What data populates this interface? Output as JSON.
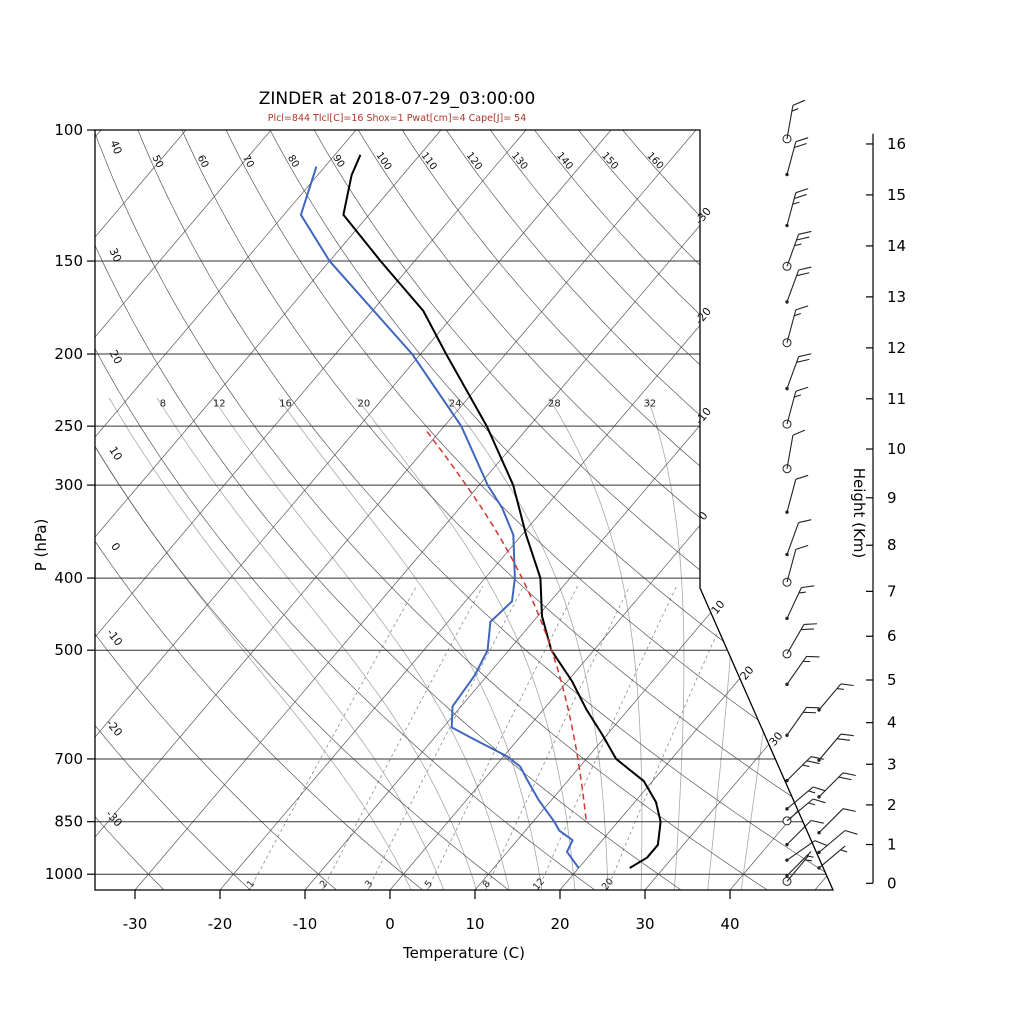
{
  "title": "ZINDER at 2018-07-29_03:00:00",
  "subtitle": "Plcl=844 Tlcl[C]=16 Shox=1 Pwat[cm]=4 Cape[J]= 54",
  "axes": {
    "pressure": {
      "label": "P (hPa)",
      "ticks": [
        100,
        150,
        200,
        250,
        300,
        400,
        500,
        700,
        850,
        1000
      ],
      "range": [
        100,
        1050
      ]
    },
    "temperature": {
      "label": "Temperature (C)",
      "ticks": [
        -30,
        -20,
        -10,
        0,
        10,
        20,
        30,
        40
      ]
    },
    "height": {
      "label": "Height (Km)",
      "ticks": [
        0,
        1,
        2,
        3,
        4,
        5,
        6,
        7,
        8,
        9,
        10,
        11,
        12,
        13,
        14,
        15,
        16
      ]
    }
  },
  "grid": {
    "isotherms": {
      "min": -120,
      "max": 50,
      "step": 10,
      "edge_labels": [
        -30,
        -20,
        -10,
        0,
        10,
        20,
        30
      ]
    },
    "dry_adiabats": {
      "min": -30,
      "max": 160,
      "step": 10,
      "left_labels": [
        40,
        30,
        20,
        10,
        0,
        -10,
        -20,
        -30
      ],
      "top_labels": [
        50,
        60,
        70,
        80,
        90,
        100,
        110,
        120,
        130,
        140,
        150,
        160
      ]
    },
    "moist_adiabats": {
      "values": [
        0,
        4,
        8,
        12,
        16,
        20,
        24,
        28,
        32,
        36,
        40
      ],
      "labels": [
        8,
        12,
        16,
        20,
        24,
        28,
        32
      ],
      "label_pressure": 238,
      "top_pressure": 230
    },
    "mixing_ratio": {
      "values": [
        1,
        2,
        3,
        5,
        8,
        12,
        20
      ],
      "labels": [
        1,
        2,
        3,
        5,
        8,
        12,
        20
      ],
      "top_pressure": 400,
      "label_pressure": 1028
    }
  },
  "chart_data": {
    "type": "line",
    "chart": "skew_t_log_p_sounding",
    "station": "ZINDER",
    "datetime": "2018-07-29_03:00:00",
    "indices": {
      "Plcl_hPa": 844,
      "Tlcl_C": 16,
      "Shox": 1,
      "Pwat_cm": 4,
      "Cape_J": 54
    },
    "series": [
      {
        "name": "temperature",
        "style": "solid",
        "points_p_T": [
          [
            981,
            26
          ],
          [
            950,
            27
          ],
          [
            913,
            27
          ],
          [
            850,
            25
          ],
          [
            800,
            22.5
          ],
          [
            750,
            19
          ],
          [
            700,
            13.5
          ],
          [
            650,
            9.5
          ],
          [
            600,
            5
          ],
          [
            550,
            0.5
          ],
          [
            500,
            -5
          ],
          [
            450,
            -9.5
          ],
          [
            400,
            -13.5
          ],
          [
            350,
            -19.5
          ],
          [
            300,
            -26
          ],
          [
            250,
            -35
          ],
          [
            200,
            -47
          ],
          [
            175,
            -54
          ],
          [
            150,
            -64
          ],
          [
            130,
            -73
          ],
          [
            115,
            -76
          ],
          [
            108,
            -77
          ]
        ]
      },
      {
        "name": "dewpoint",
        "style": "solid",
        "points_p_T": [
          [
            981,
            20
          ],
          [
            933,
            17
          ],
          [
            900,
            16.5
          ],
          [
            874,
            14
          ],
          [
            850,
            12.5
          ],
          [
            795,
            8.5
          ],
          [
            745,
            5
          ],
          [
            717,
            3
          ],
          [
            695,
            0.5
          ],
          [
            660,
            -5
          ],
          [
            635,
            -9
          ],
          [
            595,
            -11
          ],
          [
            540,
            -11.5
          ],
          [
            500,
            -12.5
          ],
          [
            458,
            -15
          ],
          [
            430,
            -14.5
          ],
          [
            400,
            -16.5
          ],
          [
            350,
            -21
          ],
          [
            322,
            -25
          ],
          [
            300,
            -29
          ],
          [
            250,
            -38
          ],
          [
            200,
            -51
          ],
          [
            150,
            -70
          ],
          [
            130,
            -78
          ],
          [
            112,
            -81
          ]
        ]
      },
      {
        "name": "parcel",
        "style": "dashed",
        "start_p": 844,
        "start_T": 16,
        "end_p": 255
      }
    ],
    "winds": [
      {
        "km": 16.1,
        "kt": 15,
        "dir": 10,
        "circle": true,
        "col": 0
      },
      {
        "km": 15.4,
        "kt": 20,
        "dir": 15,
        "circle": false,
        "col": 0
      },
      {
        "km": 14.4,
        "kt": 25,
        "dir": 15,
        "circle": false,
        "col": 0
      },
      {
        "km": 13.6,
        "kt": 25,
        "dir": 20,
        "circle": true,
        "col": 0
      },
      {
        "km": 12.9,
        "kt": 20,
        "dir": 20,
        "circle": false,
        "col": 0
      },
      {
        "km": 12.1,
        "kt": 15,
        "dir": 15,
        "circle": true,
        "col": 0
      },
      {
        "km": 11.2,
        "kt": 20,
        "dir": 20,
        "circle": false,
        "col": 0
      },
      {
        "km": 10.5,
        "kt": 15,
        "dir": 15,
        "circle": true,
        "col": 0
      },
      {
        "km": 9.6,
        "kt": 10,
        "dir": 10,
        "circle": true,
        "col": 0
      },
      {
        "km": 8.7,
        "kt": 10,
        "dir": 15,
        "circle": false,
        "col": 0
      },
      {
        "km": 7.8,
        "kt": 10,
        "dir": 20,
        "circle": false,
        "col": 0
      },
      {
        "km": 7.2,
        "kt": 10,
        "dir": 15,
        "circle": true,
        "col": 0
      },
      {
        "km": 6.4,
        "kt": 15,
        "dir": 25,
        "circle": false,
        "col": 0
      },
      {
        "km": 5.6,
        "kt": 20,
        "dir": 30,
        "circle": true,
        "col": 0
      },
      {
        "km": 4.9,
        "kt": 15,
        "dir": 35,
        "circle": false,
        "col": 0
      },
      {
        "km": 4.3,
        "kt": 15,
        "dir": 40,
        "circle": false,
        "col": 1
      },
      {
        "km": 3.7,
        "kt": 20,
        "dir": 35,
        "circle": false,
        "col": 0
      },
      {
        "km": 3.1,
        "kt": 20,
        "dir": 40,
        "circle": false,
        "col": 1
      },
      {
        "km": 2.6,
        "kt": 25,
        "dir": 45,
        "circle": false,
        "col": 0
      },
      {
        "km": 2.2,
        "kt": 20,
        "dir": 45,
        "circle": false,
        "col": 1
      },
      {
        "km": 1.9,
        "kt": 15,
        "dir": 50,
        "circle": false,
        "col": 0
      },
      {
        "km": 1.6,
        "kt": 15,
        "dir": 50,
        "circle": true,
        "col": 0
      },
      {
        "km": 1.3,
        "kt": 10,
        "dir": 45,
        "circle": false,
        "col": 1
      },
      {
        "km": 1.0,
        "kt": 10,
        "dir": 45,
        "circle": false,
        "col": 0
      },
      {
        "km": 0.8,
        "kt": 10,
        "dir": 50,
        "circle": false,
        "col": 1
      },
      {
        "km": 0.6,
        "kt": 10,
        "dir": 55,
        "circle": false,
        "col": 0
      },
      {
        "km": 0.4,
        "kt": 5,
        "dir": 50,
        "circle": false,
        "col": 1
      },
      {
        "km": 0.2,
        "kt": 5,
        "dir": 45,
        "circle": false,
        "col": 0
      },
      {
        "km": 0.05,
        "kt": 5,
        "dir": 40,
        "circle": true,
        "col": 0
      }
    ]
  },
  "colors": {
    "temperature": "#000000",
    "dewpoint": "#4066c0",
    "parcel": "#cf3630",
    "subtitle": "#a8382c",
    "grid": "#3c3c3c",
    "moist": "#a8a8a8",
    "mixing": "#8a8a8a",
    "barb": "#222222",
    "frame": "#000000"
  }
}
